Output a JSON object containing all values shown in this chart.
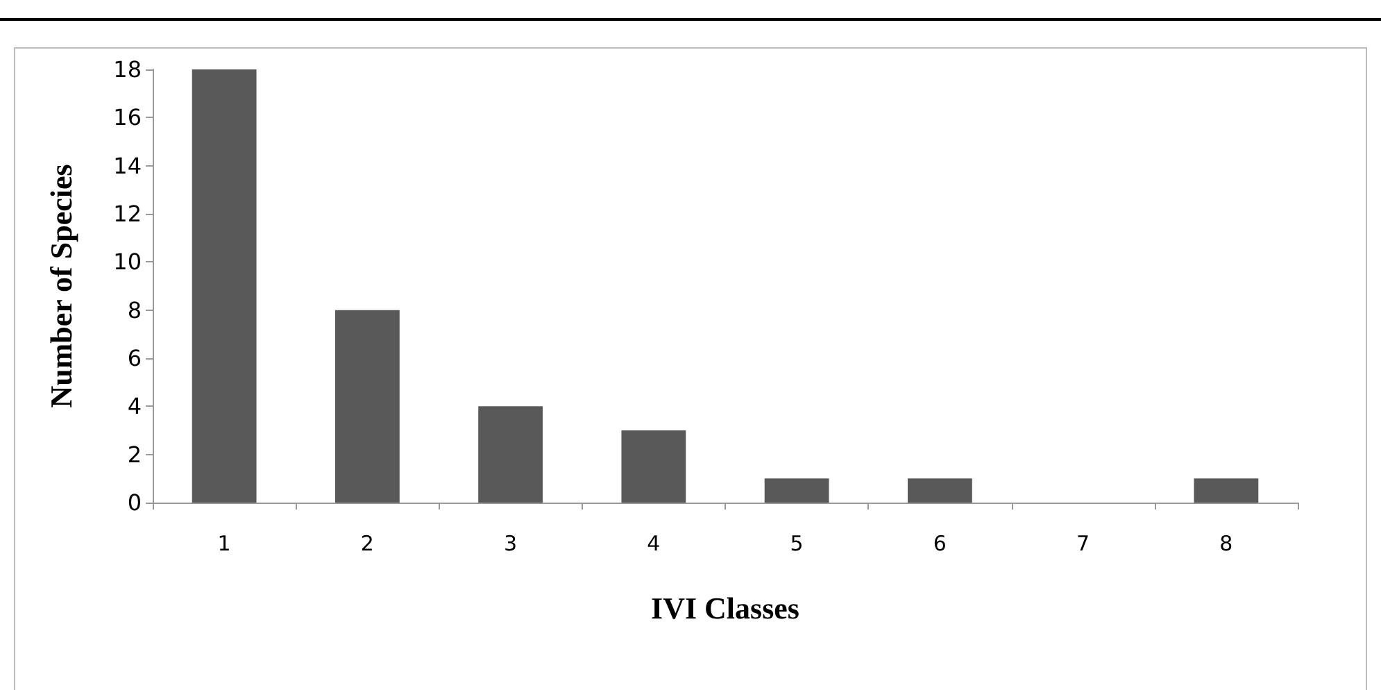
{
  "chart_data": {
    "type": "bar",
    "xlabel": "IVI Classes",
    "ylabel": "Number of Species",
    "categories": [
      "1",
      "2",
      "3",
      "4",
      "5",
      "6",
      "7",
      "8"
    ],
    "values": [
      18,
      8,
      4,
      3,
      1,
      1,
      0,
      1
    ],
    "color": "#595959",
    "ylim": [
      0,
      18
    ],
    "yticks": [
      0,
      2,
      4,
      6,
      8,
      10,
      12,
      14,
      16,
      18
    ],
    "grid": false
  }
}
